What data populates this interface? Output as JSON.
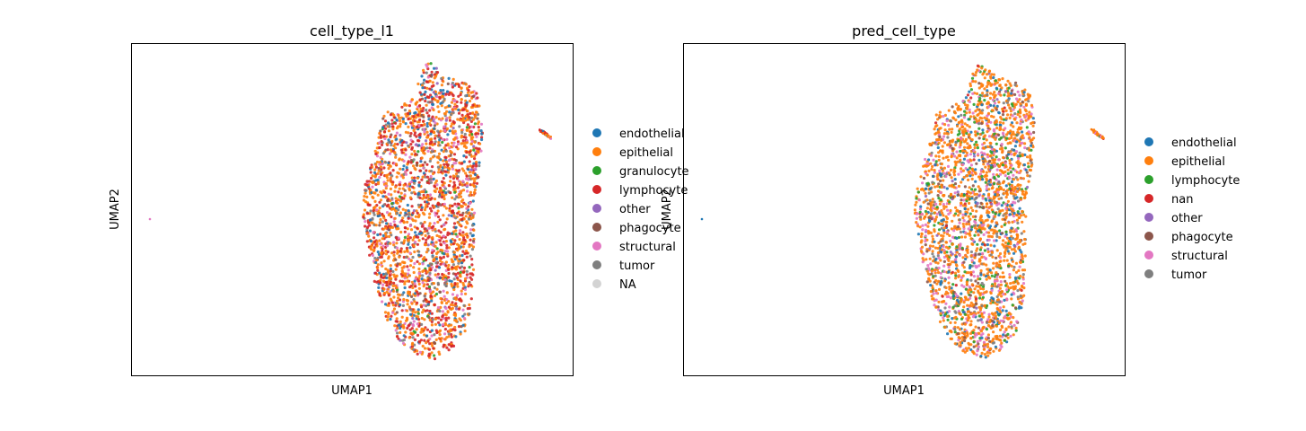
{
  "chart_data": [
    {
      "type": "scatter",
      "title": "cell_type_l1",
      "xlabel": "UMAP1",
      "ylabel": "UMAP2",
      "grid": false,
      "ticks": "none",
      "legend_position": "right",
      "categories": [
        {
          "name": "endothelial",
          "color": "#1f77b4"
        },
        {
          "name": "epithelial",
          "color": "#ff7f0e"
        },
        {
          "name": "granulocyte",
          "color": "#2ca02c"
        },
        {
          "name": "lymphocyte",
          "color": "#d62728"
        },
        {
          "name": "other",
          "color": "#9467bd"
        },
        {
          "name": "phagocyte",
          "color": "#8c564b"
        },
        {
          "name": "structural",
          "color": "#e377c2"
        },
        {
          "name": "tumor",
          "color": "#7f7f7f"
        },
        {
          "name": "NA",
          "color": "#d3d3d3"
        }
      ],
      "dominant_mix": {
        "epithelial": 0.42,
        "lymphocyte": 0.26,
        "structural": 0.1,
        "endothelial": 0.09,
        "tumor": 0.07,
        "phagocyte": 0.03,
        "granulocyte": 0.02,
        "other": 0.01
      }
    },
    {
      "type": "scatter",
      "title": "pred_cell_type",
      "xlabel": "UMAP1",
      "ylabel": "UMAP2",
      "grid": false,
      "ticks": "none",
      "legend_position": "right",
      "categories": [
        {
          "name": "endothelial",
          "color": "#1f77b4"
        },
        {
          "name": "epithelial",
          "color": "#ff7f0e"
        },
        {
          "name": "lymphocyte",
          "color": "#2ca02c"
        },
        {
          "name": "nan",
          "color": "#d62728"
        },
        {
          "name": "other",
          "color": "#9467bd"
        },
        {
          "name": "phagocyte",
          "color": "#8c564b"
        },
        {
          "name": "structural",
          "color": "#e377c2"
        },
        {
          "name": "tumor",
          "color": "#7f7f7f"
        }
      ],
      "dominant_mix": {
        "epithelial": 0.55,
        "structural": 0.14,
        "endothelial": 0.09,
        "lymphocyte": 0.09,
        "tumor": 0.06,
        "phagocyte": 0.05,
        "other": 0.01,
        "nan": 0.01
      }
    }
  ]
}
